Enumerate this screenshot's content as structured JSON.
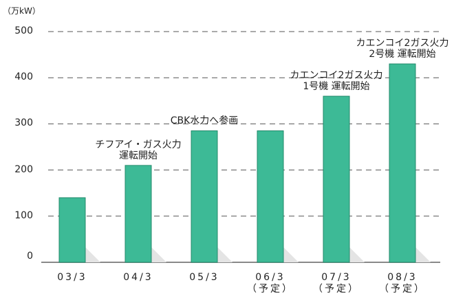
{
  "chart_data": {
    "type": "bar",
    "y_axis_label": "（万kW）",
    "categories": [
      "03/3",
      "04/3",
      "05/3",
      "06/3\n（予定）",
      "07/3\n（予定）",
      "08/3\n（予定）"
    ],
    "values": [
      140,
      210,
      285,
      285,
      360,
      430
    ],
    "color": "#3dba96",
    "ylim": [
      0,
      500
    ],
    "yticks": [
      0,
      100,
      200,
      300,
      400,
      500
    ],
    "grid": true,
    "annotations": [
      {
        "category": 1,
        "text": "チフアイ・ガス火力\n運転開始"
      },
      {
        "category": 2,
        "text": "CBK水力へ参画"
      },
      {
        "category": 4,
        "text": "カエンコイ2ガス火力\n1号機 運転開始"
      },
      {
        "category": 5,
        "text": "カエンコイ2ガス火力\n2号機 運転開始"
      }
    ]
  }
}
